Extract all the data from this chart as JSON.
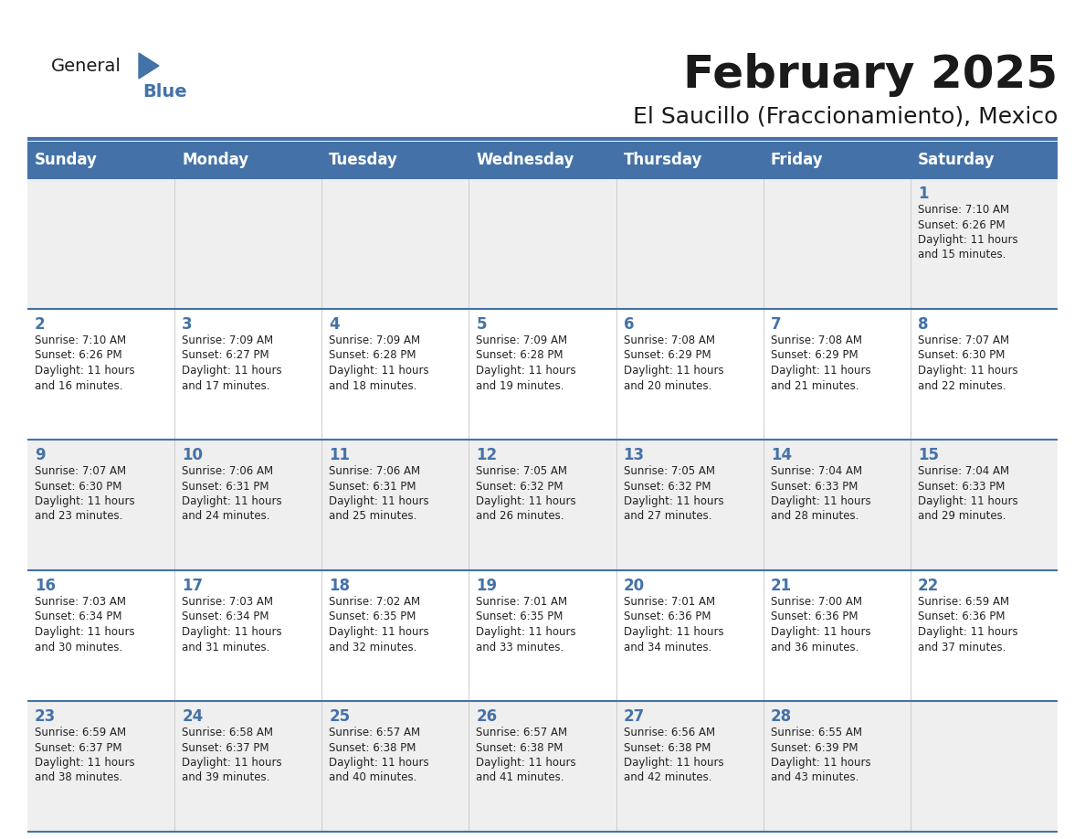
{
  "title": "February 2025",
  "subtitle": "El Saucillo (Fraccionamiento), Mexico",
  "days_of_week": [
    "Sunday",
    "Monday",
    "Tuesday",
    "Wednesday",
    "Thursday",
    "Friday",
    "Saturday"
  ],
  "header_bg": "#4472A8",
  "header_text": "#FFFFFF",
  "row_bg_light": "#EFEFEF",
  "row_bg_white": "#FFFFFF",
  "cell_border_color": "#4472A8",
  "day_num_color": "#4472A8",
  "info_text_color": "#222222",
  "background": "#FFFFFF",
  "title_fontsize": 36,
  "subtitle_fontsize": 18,
  "day_header_fontsize": 12,
  "day_num_fontsize": 12,
  "info_fontsize": 8.5,
  "calendar": [
    [
      null,
      null,
      null,
      null,
      null,
      null,
      {
        "day": 1,
        "sunrise": "7:10 AM",
        "sunset": "6:26 PM",
        "dl_hours": 11,
        "dl_mins": 15
      }
    ],
    [
      {
        "day": 2,
        "sunrise": "7:10 AM",
        "sunset": "6:26 PM",
        "dl_hours": 11,
        "dl_mins": 16
      },
      {
        "day": 3,
        "sunrise": "7:09 AM",
        "sunset": "6:27 PM",
        "dl_hours": 11,
        "dl_mins": 17
      },
      {
        "day": 4,
        "sunrise": "7:09 AM",
        "sunset": "6:28 PM",
        "dl_hours": 11,
        "dl_mins": 18
      },
      {
        "day": 5,
        "sunrise": "7:09 AM",
        "sunset": "6:28 PM",
        "dl_hours": 11,
        "dl_mins": 19
      },
      {
        "day": 6,
        "sunrise": "7:08 AM",
        "sunset": "6:29 PM",
        "dl_hours": 11,
        "dl_mins": 20
      },
      {
        "day": 7,
        "sunrise": "7:08 AM",
        "sunset": "6:29 PM",
        "dl_hours": 11,
        "dl_mins": 21
      },
      {
        "day": 8,
        "sunrise": "7:07 AM",
        "sunset": "6:30 PM",
        "dl_hours": 11,
        "dl_mins": 22
      }
    ],
    [
      {
        "day": 9,
        "sunrise": "7:07 AM",
        "sunset": "6:30 PM",
        "dl_hours": 11,
        "dl_mins": 23
      },
      {
        "day": 10,
        "sunrise": "7:06 AM",
        "sunset": "6:31 PM",
        "dl_hours": 11,
        "dl_mins": 24
      },
      {
        "day": 11,
        "sunrise": "7:06 AM",
        "sunset": "6:31 PM",
        "dl_hours": 11,
        "dl_mins": 25
      },
      {
        "day": 12,
        "sunrise": "7:05 AM",
        "sunset": "6:32 PM",
        "dl_hours": 11,
        "dl_mins": 26
      },
      {
        "day": 13,
        "sunrise": "7:05 AM",
        "sunset": "6:32 PM",
        "dl_hours": 11,
        "dl_mins": 27
      },
      {
        "day": 14,
        "sunrise": "7:04 AM",
        "sunset": "6:33 PM",
        "dl_hours": 11,
        "dl_mins": 28
      },
      {
        "day": 15,
        "sunrise": "7:04 AM",
        "sunset": "6:33 PM",
        "dl_hours": 11,
        "dl_mins": 29
      }
    ],
    [
      {
        "day": 16,
        "sunrise": "7:03 AM",
        "sunset": "6:34 PM",
        "dl_hours": 11,
        "dl_mins": 30
      },
      {
        "day": 17,
        "sunrise": "7:03 AM",
        "sunset": "6:34 PM",
        "dl_hours": 11,
        "dl_mins": 31
      },
      {
        "day": 18,
        "sunrise": "7:02 AM",
        "sunset": "6:35 PM",
        "dl_hours": 11,
        "dl_mins": 32
      },
      {
        "day": 19,
        "sunrise": "7:01 AM",
        "sunset": "6:35 PM",
        "dl_hours": 11,
        "dl_mins": 33
      },
      {
        "day": 20,
        "sunrise": "7:01 AM",
        "sunset": "6:36 PM",
        "dl_hours": 11,
        "dl_mins": 34
      },
      {
        "day": 21,
        "sunrise": "7:00 AM",
        "sunset": "6:36 PM",
        "dl_hours": 11,
        "dl_mins": 36
      },
      {
        "day": 22,
        "sunrise": "6:59 AM",
        "sunset": "6:36 PM",
        "dl_hours": 11,
        "dl_mins": 37
      }
    ],
    [
      {
        "day": 23,
        "sunrise": "6:59 AM",
        "sunset": "6:37 PM",
        "dl_hours": 11,
        "dl_mins": 38
      },
      {
        "day": 24,
        "sunrise": "6:58 AM",
        "sunset": "6:37 PM",
        "dl_hours": 11,
        "dl_mins": 39
      },
      {
        "day": 25,
        "sunrise": "6:57 AM",
        "sunset": "6:38 PM",
        "dl_hours": 11,
        "dl_mins": 40
      },
      {
        "day": 26,
        "sunrise": "6:57 AM",
        "sunset": "6:38 PM",
        "dl_hours": 11,
        "dl_mins": 41
      },
      {
        "day": 27,
        "sunrise": "6:56 AM",
        "sunset": "6:38 PM",
        "dl_hours": 11,
        "dl_mins": 42
      },
      {
        "day": 28,
        "sunrise": "6:55 AM",
        "sunset": "6:39 PM",
        "dl_hours": 11,
        "dl_mins": 43
      },
      null
    ]
  ],
  "logo_general_color": "#1a1a1a",
  "logo_blue_color": "#4472A8",
  "logo_triangle_color": "#4472A8"
}
